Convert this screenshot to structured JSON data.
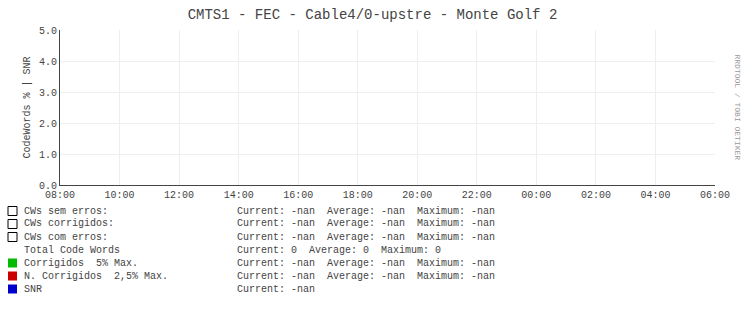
{
  "chart_data": {
    "type": "line",
    "title": "CMTS1 - FEC - Cable4/0-upstre - Monte Golf 2",
    "ylabel": "CodeWords % | SNR",
    "categories": [
      "08:00",
      "10:00",
      "12:00",
      "14:00",
      "16:00",
      "18:00",
      "20:00",
      "22:00",
      "00:00",
      "02:00",
      "04:00",
      "06:00"
    ],
    "series": [
      {
        "name": "CWs sem erros:",
        "marker": "square-open",
        "values": [
          null,
          null,
          null,
          null,
          null,
          null,
          null,
          null,
          null,
          null,
          null,
          null
        ],
        "annotation": "Current: -nan  Average: -nan  Maximum: -nan"
      },
      {
        "name": "CWs corrigidos:",
        "marker": "square-open",
        "values": [
          null,
          null,
          null,
          null,
          null,
          null,
          null,
          null,
          null,
          null,
          null,
          null
        ],
        "annotation": "Current: -nan  Average: -nan  Maximum: -nan"
      },
      {
        "name": "CWs com erros:",
        "marker": "square-open",
        "values": [
          null,
          null,
          null,
          null,
          null,
          null,
          null,
          null,
          null,
          null,
          null,
          null
        ],
        "annotation": "Current: -nan  Average: -nan  Maximum: -nan"
      },
      {
        "name": "Total Code Words",
        "values": [
          null,
          null,
          null,
          null,
          null,
          null,
          null,
          null,
          null,
          null,
          null,
          null
        ],
        "annotation": "Current: 0  Average: 0  Maximum: 0"
      },
      {
        "name": "Corrigidos  5% Max.",
        "color": "#00bb00",
        "values": [
          null,
          null,
          null,
          null,
          null,
          null,
          null,
          null,
          null,
          null,
          null,
          null
        ],
        "annotation": "Current: -nan  Average: -nan  Maximum: -nan"
      },
      {
        "name": "N. Corrigidos  2,5% Max.",
        "color": "#cc0000",
        "values": [
          null,
          null,
          null,
          null,
          null,
          null,
          null,
          null,
          null,
          null,
          null,
          null
        ],
        "annotation": "Current: -nan  Average: -nan  Maximum: -nan"
      },
      {
        "name": "SNR",
        "color": "#0000cc",
        "values": [
          null,
          null,
          null,
          null,
          null,
          null,
          null,
          null,
          null,
          null,
          null,
          null
        ],
        "annotation": "Current: -nan"
      }
    ],
    "annotations": [
      "RRDTOOL / TOBI OETIKER"
    ],
    "ylim": [
      0.0,
      5.0
    ],
    "yticks": [
      {
        "value": 0.0,
        "label": "0.0"
      },
      {
        "value": 1.0,
        "label": "1.0"
      },
      {
        "value": 2.0,
        "label": "2.0"
      },
      {
        "value": 3.0,
        "label": "3.0"
      },
      {
        "value": 4.0,
        "label": "4.0"
      },
      {
        "value": 5.0,
        "label": "5.0"
      }
    ],
    "grid": true
  }
}
